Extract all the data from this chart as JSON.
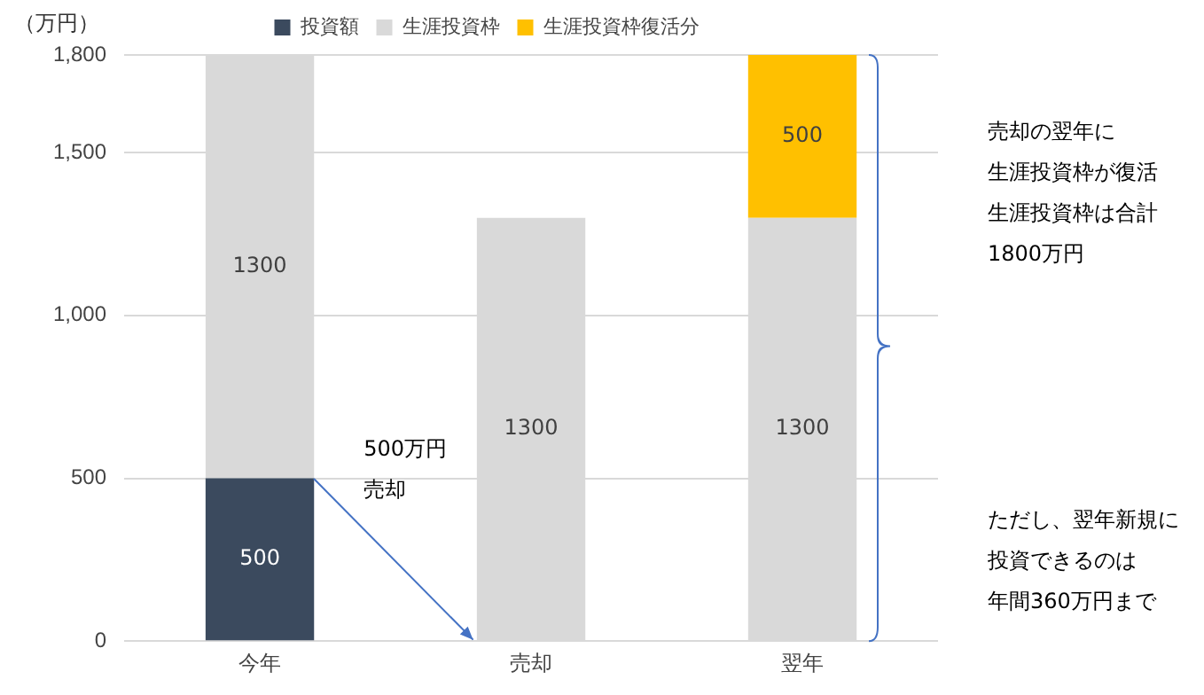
{
  "chart_data": {
    "type": "bar",
    "stacked": true,
    "ylabel": "（万円）",
    "categories": [
      "今年",
      "売却",
      "翌年"
    ],
    "series": [
      {
        "name": "投資額",
        "color": "#3b4a5e",
        "values": [
          500,
          null,
          null
        ]
      },
      {
        "name": "生涯投資枠",
        "color": "#d9d9d9",
        "values": [
          1300,
          1300,
          1300
        ]
      },
      {
        "name": "生涯投資枠復活分",
        "color": "#ffc000",
        "values": [
          null,
          null,
          500
        ]
      }
    ],
    "ylim": [
      0,
      1800
    ],
    "yticks": [
      0,
      500,
      {
        "value": 1000,
        "label": "1,000"
      },
      {
        "value": 1500,
        "label": "1,500"
      },
      {
        "value": 1800,
        "label": "1,800"
      }
    ],
    "grid": "y",
    "legend": "top",
    "data_labels": true,
    "annotations": [
      "500万円",
      "売却",
      "売却の翌年に",
      "生涯投資枠が復活",
      "生涯投資枠は合計",
      "1800万円",
      "ただし、翌年新規に",
      "投資できるのは",
      "年間360万円まで"
    ]
  }
}
